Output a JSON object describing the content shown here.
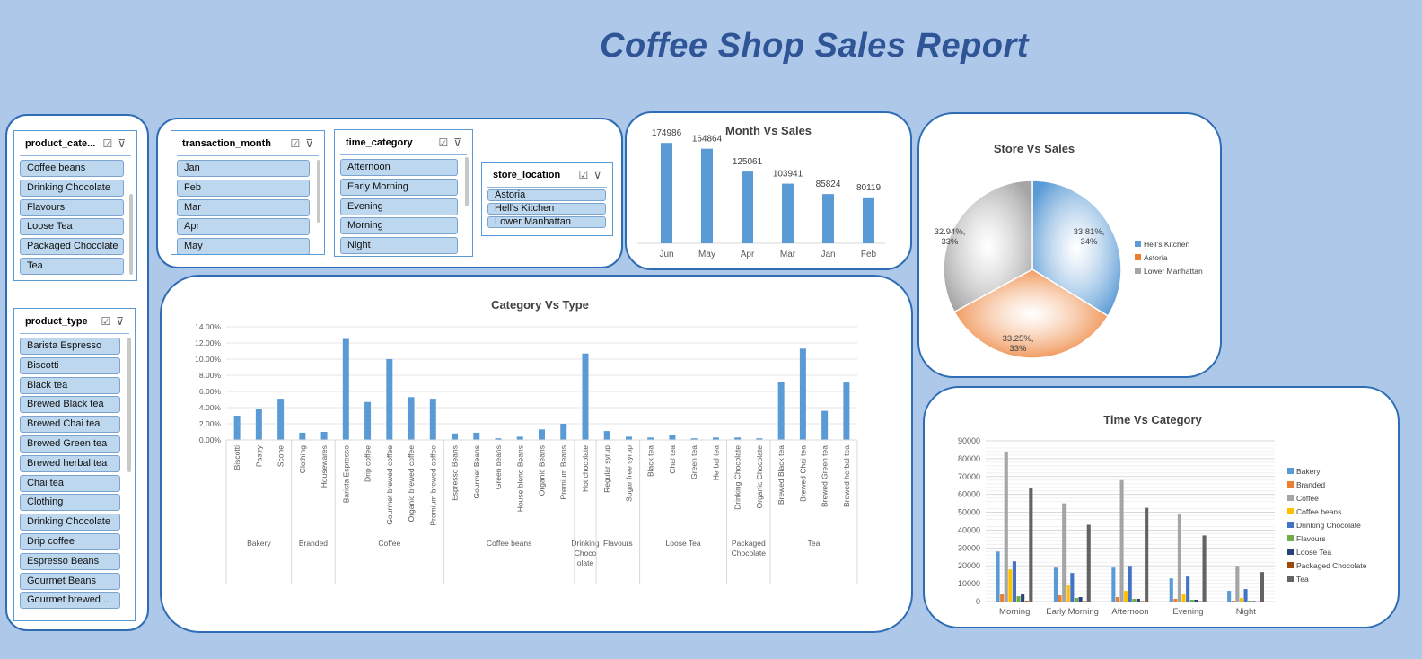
{
  "report_title": "Coffee Shop Sales Report",
  "slicers": {
    "product_category": {
      "title": "product_cate...",
      "items": [
        "Coffee beans",
        "Drinking Chocolate",
        "Flavours",
        "Loose Tea",
        "Packaged Chocolate",
        "Tea"
      ]
    },
    "product_type": {
      "title": "product_type",
      "items": [
        "Barista Espresso",
        "Biscotti",
        "Black tea",
        "Brewed Black tea",
        "Brewed Chai tea",
        "Brewed Green tea",
        "Brewed herbal tea",
        "Chai tea",
        "Clothing",
        "Drinking Chocolate",
        "Drip coffee",
        "Espresso Beans",
        "Gourmet Beans",
        "Gourmet brewed ..."
      ]
    },
    "transaction_month": {
      "title": "transaction_month",
      "items": [
        "Jan",
        "Feb",
        "Mar",
        "Apr",
        "May"
      ]
    },
    "time_category": {
      "title": "time_category",
      "items": [
        "Afternoon",
        "Early Morning",
        "Evening",
        "Morning",
        "Night"
      ]
    },
    "store_location": {
      "title": "store_location",
      "items": [
        "Astoria",
        "Hell's Kitchen",
        "Lower Manhattan"
      ]
    }
  },
  "icons": {
    "multi_select": "multi-select-icon",
    "clear_filter": "clear-filter-icon"
  },
  "chart_data": [
    {
      "id": "month_vs_sales",
      "type": "bar",
      "title": "Month Vs Sales",
      "categories": [
        "Jun",
        "May",
        "Apr",
        "Mar",
        "Jan",
        "Feb"
      ],
      "values": [
        174986,
        164864,
        125061,
        103941,
        85824,
        80119
      ],
      "color": "#5b9bd5",
      "ylim": [
        0,
        180000
      ]
    },
    {
      "id": "store_vs_sales",
      "type": "pie",
      "title": "Store Vs Sales",
      "labels": [
        "Hell's Kitchen",
        "Astoria",
        "Lower Manhattan"
      ],
      "values": [
        33.81,
        33.25,
        32.94
      ],
      "data_labels": [
        "33.81%,\n34%",
        "33.25%,\n33%",
        "32.94%,\n33%"
      ],
      "colors": [
        "#5b9bd5",
        "#ed7d31",
        "#a5a5a5"
      ],
      "legend": "right"
    },
    {
      "id": "category_vs_type",
      "type": "bar",
      "title": "Category Vs Type",
      "ylim": [
        0,
        14
      ],
      "yticks": [
        "0.00%",
        "2.00%",
        "4.00%",
        "6.00%",
        "8.00%",
        "10.00%",
        "12.00%",
        "14.00%"
      ],
      "groups": [
        {
          "name": "Bakery",
          "types": [
            "Biscotti",
            "Pastry",
            "Scone"
          ],
          "values": [
            3.0,
            3.8,
            5.1
          ]
        },
        {
          "name": "Branded",
          "types": [
            "Clothing",
            "Housewares"
          ],
          "values": [
            0.9,
            1.0
          ]
        },
        {
          "name": "Coffee",
          "types": [
            "Barista Espresso",
            "Drip coffee",
            "Gourmet brewed coffee",
            "Organic brewed coffee",
            "Premium brewed coffee"
          ],
          "values": [
            12.5,
            4.7,
            10.0,
            5.3,
            5.1
          ]
        },
        {
          "name": "Coffee beans",
          "types": [
            "Espresso Beans",
            "Gourmet Beans",
            "Green beans",
            "House blend Beans",
            "Organic Beans",
            "Premium Beans"
          ],
          "values": [
            0.8,
            0.9,
            0.2,
            0.4,
            1.3,
            2.0
          ]
        },
        {
          "name": "Drinking Chocolate",
          "types": [
            "Hot chocolate"
          ],
          "values": [
            10.7
          ]
        },
        {
          "name": "Flavours",
          "types": [
            "Regular syrup",
            "Sugar free syrup"
          ],
          "values": [
            1.1,
            0.4
          ]
        },
        {
          "name": "Loose Tea",
          "types": [
            "Black tea",
            "Chai tea",
            "Green tea",
            "Herbal tea"
          ],
          "values": [
            0.3,
            0.6,
            0.2,
            0.3
          ]
        },
        {
          "name": "Packaged Chocolate",
          "types": [
            "Drinking Chocolate",
            "Organic Chocolate"
          ],
          "values": [
            0.3,
            0.2
          ]
        },
        {
          "name": "Tea",
          "types": [
            "Brewed Black tea",
            "Brewed Chai tea",
            "Brewed Green tea",
            "Brewed herbal tea"
          ],
          "values": [
            7.2,
            11.3,
            3.6,
            7.1
          ]
        }
      ],
      "group_labels": [
        "Bakery",
        "Branded",
        "Coffee",
        "Coffee beans",
        "Drinking\nChoco\nolate",
        "Flavours",
        "Loose Tea",
        "Packaged\nChocolate",
        "Tea"
      ],
      "color": "#5b9bd5"
    },
    {
      "id": "time_vs_category",
      "type": "bar",
      "title": "Time Vs Category",
      "categories": [
        "Morning",
        "Early Morning",
        "Afternoon",
        "Evening",
        "Night"
      ],
      "ylim": [
        0,
        90000
      ],
      "yticks": [
        "0",
        "10000",
        "20000",
        "30000",
        "40000",
        "50000",
        "60000",
        "70000",
        "80000",
        "90000"
      ],
      "series": [
        {
          "name": "Bakery",
          "color": "#5b9bd5",
          "values": [
            28000,
            19000,
            19000,
            13000,
            6000
          ]
        },
        {
          "name": "Branded",
          "color": "#ed7d31",
          "values": [
            4000,
            3500,
            2500,
            1500,
            500
          ]
        },
        {
          "name": "Coffee",
          "color": "#a5a5a5",
          "values": [
            84000,
            55000,
            68000,
            49000,
            20000
          ]
        },
        {
          "name": "Coffee beans",
          "color": "#ffc000",
          "values": [
            18000,
            9000,
            6000,
            4000,
            2000
          ]
        },
        {
          "name": "Drinking Chocolate",
          "color": "#4472c4",
          "values": [
            22500,
            16000,
            20000,
            14000,
            7000
          ]
        },
        {
          "name": "Flavours",
          "color": "#70ad47",
          "values": [
            3000,
            2000,
            1500,
            1000,
            500
          ]
        },
        {
          "name": "Loose Tea",
          "color": "#264478",
          "values": [
            4000,
            2500,
            1500,
            1000,
            300
          ]
        },
        {
          "name": "Packaged Chocolate",
          "color": "#9e480e",
          "values": [
            400,
            300,
            300,
            200,
            100
          ]
        },
        {
          "name": "Tea",
          "color": "#636363",
          "values": [
            63500,
            43000,
            52500,
            37000,
            16500
          ]
        }
      ],
      "legend": "right"
    }
  ]
}
